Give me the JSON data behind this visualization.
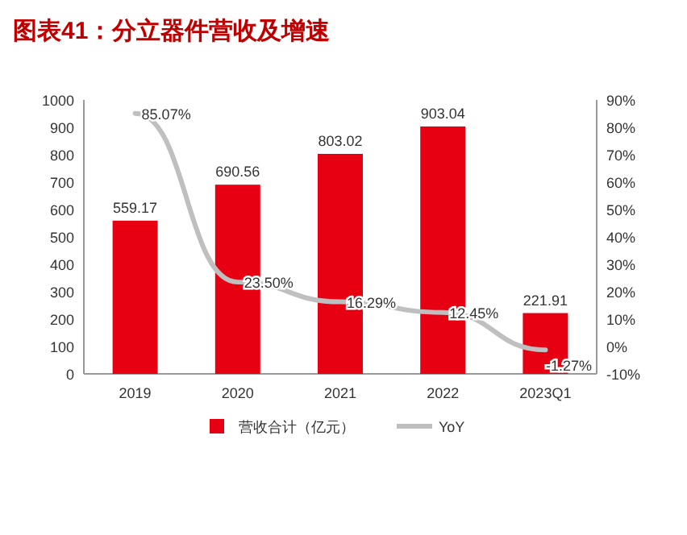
{
  "chart_data": {
    "type": "bar",
    "title": "图表41：分立器件营收及增速",
    "categories": [
      "2019",
      "2020",
      "2021",
      "2022",
      "2023Q1"
    ],
    "series": [
      {
        "name": "营收合计（亿元）",
        "color": "#e60012",
        "values": [
          559.17,
          690.56,
          803.02,
          903.04,
          221.91
        ],
        "value_labels": [
          "559.17",
          "690.56",
          "803.02",
          "903.04",
          "221.91"
        ]
      },
      {
        "name": "YoY",
        "type": "line",
        "axis": "y2",
        "color": "#bfbfbf",
        "values": [
          85.07,
          23.5,
          16.29,
          12.45,
          -1.27
        ],
        "value_labels": [
          "85.07%",
          "23.50%",
          "16.29%",
          "12.45%",
          "-1.27%"
        ]
      }
    ],
    "ylim": [
      0,
      1000
    ],
    "yticks": [
      0,
      100,
      200,
      300,
      400,
      500,
      600,
      700,
      800,
      900,
      1000
    ],
    "y2lim": [
      -10,
      90
    ],
    "y2ticks": [
      {
        "value": -10,
        "label": "-10%"
      },
      {
        "value": 0,
        "label": "0%"
      },
      {
        "value": 10,
        "label": "10%"
      },
      {
        "value": 20,
        "label": "20%"
      },
      {
        "value": 30,
        "label": "30%"
      },
      {
        "value": 40,
        "label": "40%"
      },
      {
        "value": 50,
        "label": "50%"
      },
      {
        "value": 60,
        "label": "60%"
      },
      {
        "value": 70,
        "label": "70%"
      },
      {
        "value": 80,
        "label": "80%"
      },
      {
        "value": 90,
        "label": "90%"
      }
    ],
    "legend": "bottom",
    "marker": "none"
  }
}
